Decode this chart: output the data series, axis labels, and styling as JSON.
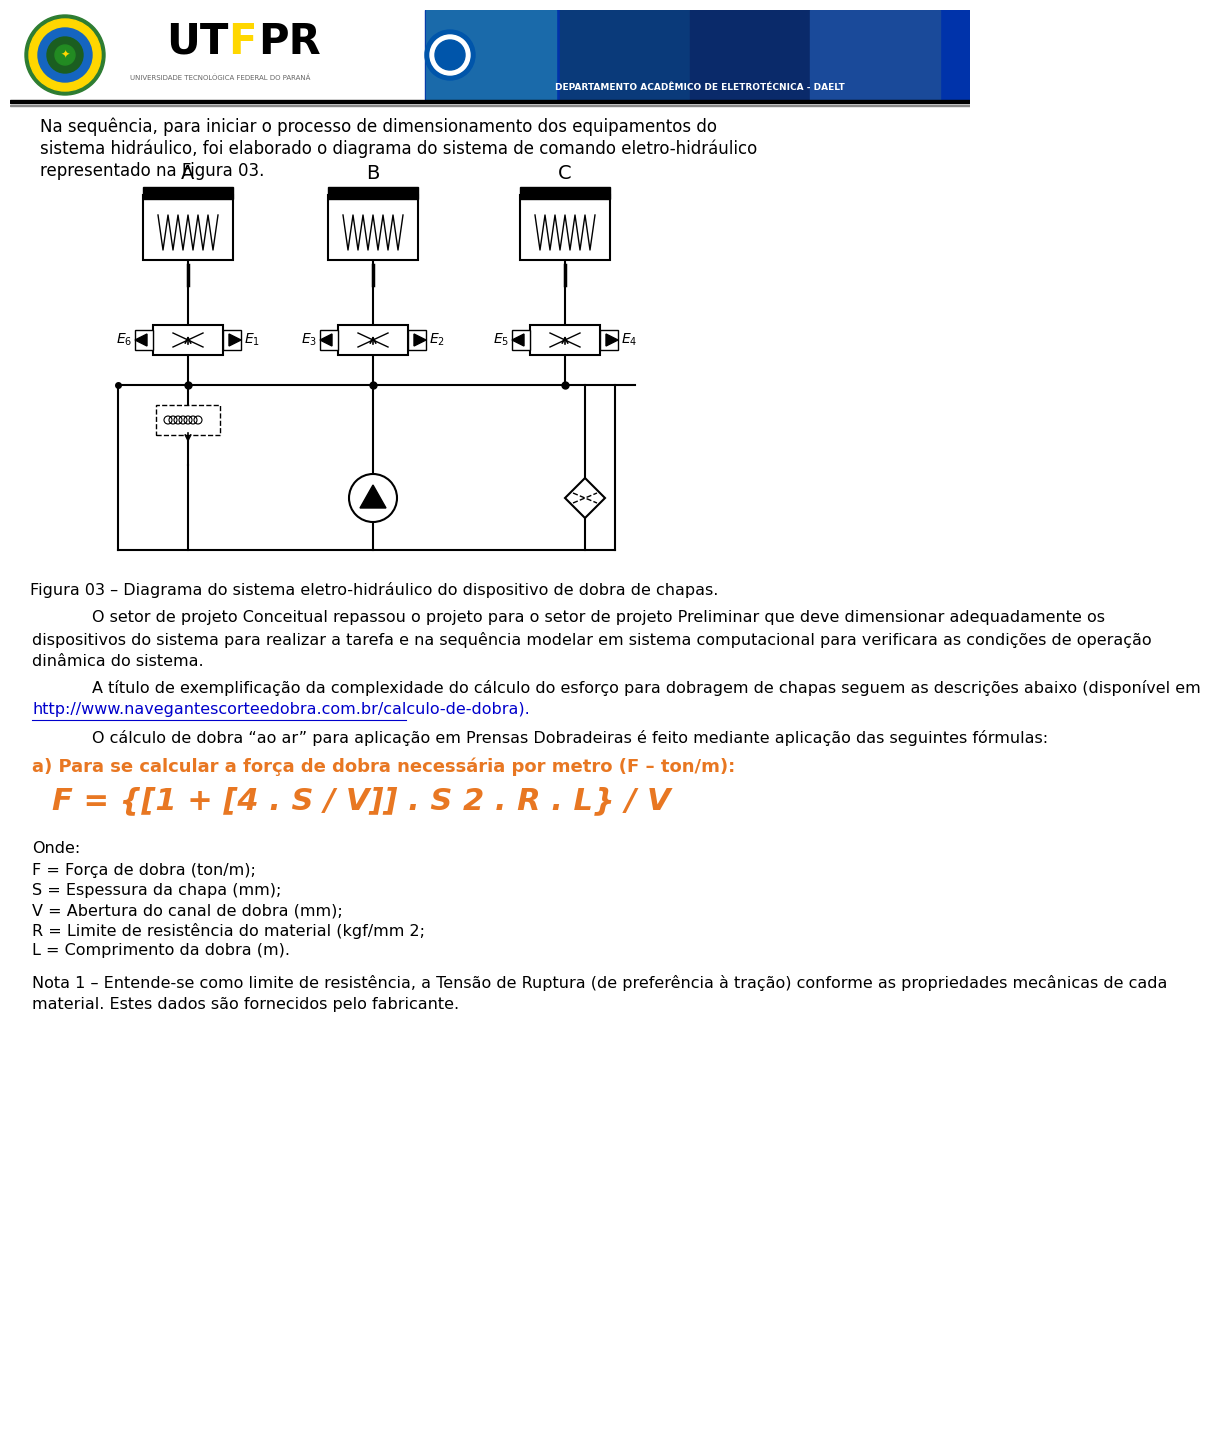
{
  "bg_color": "#ffffff",
  "header_line_color": "#000000",
  "body_text_color": "#000000",
  "orange_color": "#E87722",
  "link_color": "#0000CC",
  "intro_text": "Na sequência, para iniciar o processo de dimensionamento dos equipamentos do sistema hidráulico, foi elaborado o diagrama do sistema de comando eletro-hidráulico representado na Figura 03.",
  "figure_caption": "Figura 03 – Diagrama do sistema eletro-hidráulico do dispositivo de dobra de chapas.",
  "paragraph1": "O setor de projeto Conceitual repassou o projeto para o setor de projeto Preliminar que deve dimensionar adequadamente os dispositivos do sistema para realizar a tarefa e na sequência modelar em sistema computacional para verificara as condições de operação dinâmica do sistema.",
  "paragraph2a": "A título de exemplificação da complexidade do cálculo do esforço para dobragem de chapas seguem as descrições abaixo (disponível em",
  "paragraph2b": "http://www.navegantescorteedobra.com.br/calculo-de-dobra).",
  "paragraph3": "O cálculo de dobra “ao ar” para aplicação em Prensas Dobradeiras é feito mediante aplicação das seguintes fórmulas:",
  "orange_heading": "a) Para se calcular a força de dobra necessária por metro (F – ton/m):",
  "formula": "F = {[1 + [4 . S / V]] . S 2 . R . L} / V",
  "onde_label": "Onde:",
  "variables": [
    "F = Força de dobra (ton/m);",
    "S = Espessura da chapa (mm);",
    "V = Abertura do canal de dobra (mm);",
    "R = Limite de resistência do material (kgf/mm 2;",
    "L = Comprimento da dobra (m)."
  ],
  "nota": "Nota 1 – Entende-se como limite de resistência, a Tensão de Ruptura (de preferência à tração) conforme as propriedades mecânicas de cada material. Estes dados são fornecidos pelo fabricante."
}
